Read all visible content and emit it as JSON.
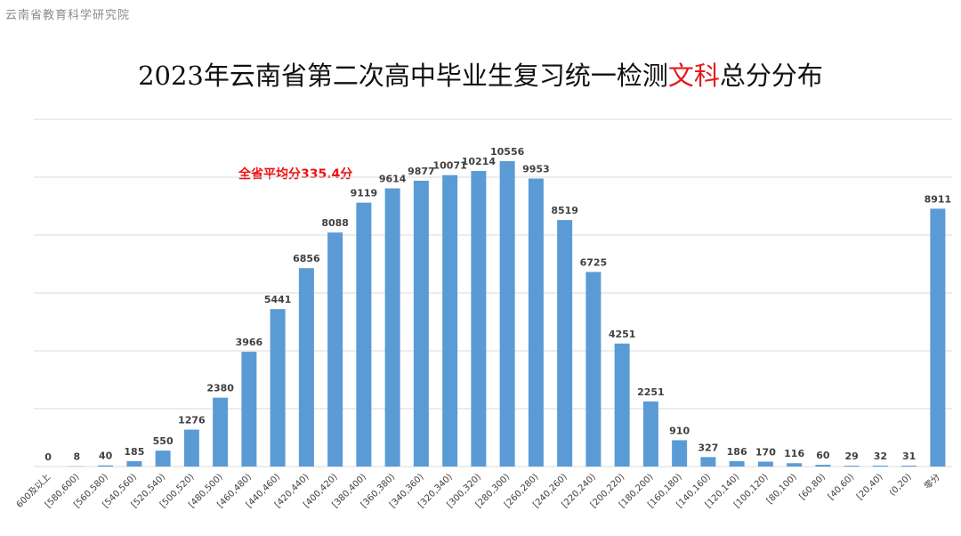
{
  "source_label": "云南省教育科学研究院",
  "title": {
    "prefix": "2023年云南省第二次高中毕业生复习统一检测",
    "highlight": "文科",
    "suffix": "总分分布"
  },
  "annotation": "全省平均分335.4分",
  "colors": {
    "bar": "#5b9bd5",
    "grid": "#d9d9d9",
    "highlight": "#e31b1b"
  },
  "chart_data": {
    "type": "bar",
    "categories": [
      "600及以上",
      "[580,600)",
      "[560,580)",
      "[540,560)",
      "[520,540)",
      "[500,520)",
      "[480,500)",
      "[460,480)",
      "[440,460)",
      "[420,440)",
      "[400,420)",
      "[380,400)",
      "[360,380)",
      "[340,360)",
      "[320,340)",
      "[300,320)",
      "[280,300)",
      "[260,280)",
      "[240,260)",
      "[220,240)",
      "[200,220)",
      "[180,200)",
      "[160,180)",
      "[140,160)",
      "[120,140)",
      "[100,120)",
      "[80,100)",
      "[60,80)",
      "[40,60)",
      "[20,40)",
      "(0,20)",
      "零分"
    ],
    "values": [
      0,
      8,
      40,
      185,
      550,
      1276,
      2380,
      3966,
      5441,
      6856,
      8088,
      9119,
      9614,
      9877,
      10071,
      10214,
      10556,
      9953,
      8519,
      6725,
      4251,
      2251,
      910,
      327,
      186,
      170,
      116,
      60,
      29,
      32,
      31,
      8911
    ],
    "ylim": [
      0,
      12000
    ],
    "grid": true,
    "legend": "none"
  }
}
